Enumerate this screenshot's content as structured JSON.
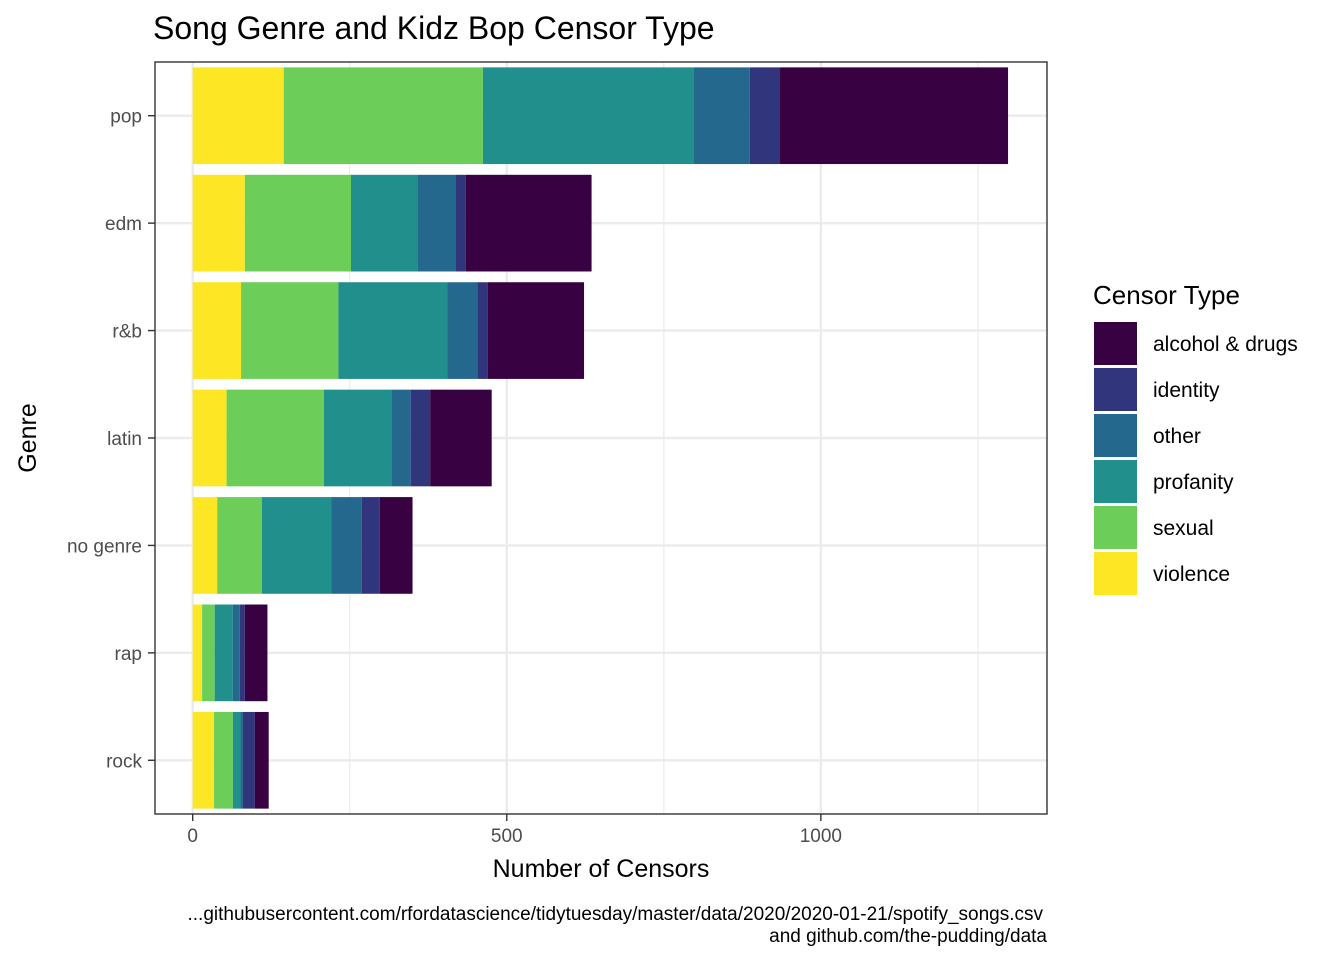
{
  "chart_data": {
    "type": "bar",
    "orientation": "horizontal",
    "stacked": true,
    "title": "Song Genre and Kidz Bop Censor Type",
    "xlabel": "Number of Censors",
    "ylabel": "Genre",
    "xlim": [
      -60,
      1360
    ],
    "x_ticks": [
      0,
      500,
      1000
    ],
    "grid": true,
    "categories": [
      "pop",
      "edm",
      "r&b",
      "latin",
      "no genre",
      "rap",
      "rock"
    ],
    "legend": {
      "title": "Censor Type",
      "position": "right"
    },
    "series": [
      {
        "name": "violence",
        "color": "#FDE725",
        "values": [
          145,
          83,
          77,
          54,
          39,
          15,
          34
        ]
      },
      {
        "name": "sexual",
        "color": "#6CCE59",
        "values": [
          317,
          169,
          155,
          155,
          71,
          20,
          30
        ]
      },
      {
        "name": "profanity",
        "color": "#21908C",
        "values": [
          335,
          106,
          173,
          107,
          111,
          29,
          12
        ]
      },
      {
        "name": "other",
        "color": "#25688E",
        "values": [
          90,
          60,
          48,
          31,
          48,
          11,
          4
        ]
      },
      {
        "name": "identity",
        "color": "#31357B",
        "values": [
          48,
          17,
          17,
          31,
          29,
          8,
          19
        ]
      },
      {
        "name": "alcohol & drugs",
        "color": "#380142",
        "values": [
          363,
          200,
          153,
          98,
          52,
          36,
          22
        ]
      }
    ],
    "legend_order": [
      "alcohol & drugs",
      "identity",
      "other",
      "profanity",
      "sexual",
      "violence"
    ],
    "caption": [
      "...githubusercontent.com/rfordatascience/tidytuesday/master/data/2020/2020-01-21/spotify_songs.csv",
      "and github.com/the-pudding/data"
    ]
  }
}
